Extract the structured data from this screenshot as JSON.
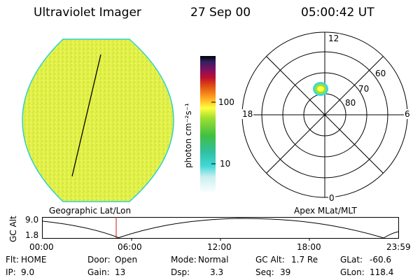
{
  "header": {
    "title": "Ultraviolet Imager",
    "date": "27 Sep 00",
    "time": "05:00:42 UT"
  },
  "colorbar": {
    "unit_label": "photon cm⁻²s⁻¹",
    "ticks": [
      "100",
      "10"
    ]
  },
  "polar": {
    "mlt_labels": {
      "top": "12",
      "bottom": "0",
      "left": "18",
      "right": "6"
    },
    "lat_labels": [
      "60",
      "70",
      "80"
    ]
  },
  "timeline": {
    "left_label": "Geographic Lat/Lon",
    "right_label": "Apex MLat/MLT",
    "axis_label": "GC Alt",
    "ymax": "9.0",
    "ymin": "1.8",
    "ticks": [
      "00:00",
      "06:00",
      "12:00",
      "18:00",
      "23:59"
    ]
  },
  "status": {
    "rows": [
      [
        {
          "label": "Flt:",
          "value": "HOME"
        },
        {
          "label": "Door:",
          "value": "Open"
        },
        {
          "label": "Mode:",
          "value": "Normal"
        },
        {
          "label": "GC Alt:",
          "value": "1.7 Re"
        },
        {
          "label": "GLat:",
          "value": "-60.6"
        }
      ],
      [
        {
          "label": "IP:",
          "value": "9.0"
        },
        {
          "label": "Gain:",
          "value": "13"
        },
        {
          "label": "Dsp:",
          "value": "3.3"
        },
        {
          "label": "Seq:",
          "value": "39"
        },
        {
          "label": "GLon:",
          "value": "118.4"
        }
      ]
    ]
  },
  "colors": {
    "disk_fill": "#e4f24a",
    "disk_edge": "#2fd0d0",
    "cursor": "#d01010"
  }
}
